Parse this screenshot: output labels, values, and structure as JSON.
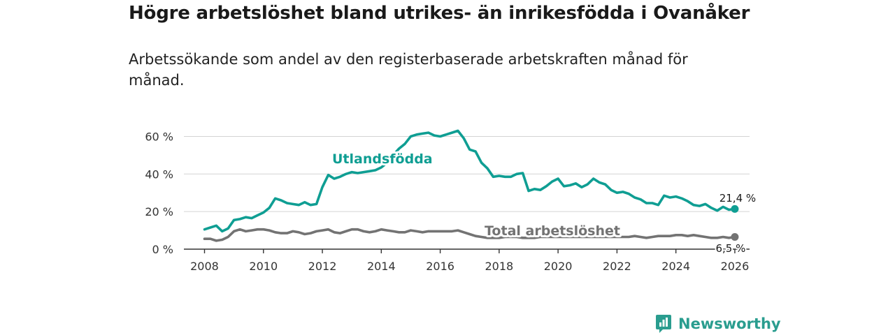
{
  "title": "Högre arbetslöshet bland utrikes- än inrikesfödda i Ovanåker",
  "subtitle": "Arbetssökande som andel av den registerbaserade arbetskraften månad för månad.",
  "brand": "Newsworthy",
  "colors": {
    "foreign": "#0f9e93",
    "total": "#737373",
    "grid": "#d4d4d4",
    "brand": "#2a9d8f"
  },
  "chart_data": {
    "type": "line",
    "title": "Högre arbetslöshet bland utrikes- än inrikesfödda i Ovanåker",
    "xlabel": "",
    "ylabel": "",
    "xlim": [
      2007.3,
      2026.5
    ],
    "ylim": [
      0,
      65
    ],
    "yticks": [
      0,
      20,
      40,
      60
    ],
    "ytick_labels": [
      "0 %",
      "20 %",
      "40 %",
      "60 %"
    ],
    "xticks": [
      2008,
      2010,
      2012,
      2014,
      2016,
      2018,
      2020,
      2022,
      2024,
      2026
    ],
    "xtick_labels": [
      "2008",
      "2010",
      "2012",
      "2014",
      "2016",
      "2018",
      "2020",
      "2022",
      "2024",
      "2026"
    ],
    "grid": true,
    "series": [
      {
        "name": "Utlandsfödda",
        "label": "Utlandsfödda",
        "end_label": "21,4 %",
        "x": [
          2008.0,
          2008.2,
          2008.4,
          2008.6,
          2008.8,
          2009.0,
          2009.2,
          2009.4,
          2009.6,
          2009.8,
          2010.0,
          2010.2,
          2010.4,
          2010.6,
          2010.8,
          2011.0,
          2011.2,
          2011.4,
          2011.6,
          2011.8,
          2012.0,
          2012.2,
          2012.4,
          2012.6,
          2012.8,
          2013.0,
          2013.2,
          2013.4,
          2013.6,
          2013.8,
          2014.0,
          2014.2,
          2014.4,
          2014.6,
          2014.8,
          2015.0,
          2015.2,
          2015.4,
          2015.6,
          2015.8,
          2016.0,
          2016.2,
          2016.4,
          2016.6,
          2016.8,
          2017.0,
          2017.2,
          2017.4,
          2017.6,
          2017.8,
          2018.0,
          2018.2,
          2018.4,
          2018.6,
          2018.8,
          2019.0,
          2019.2,
          2019.4,
          2019.6,
          2019.8,
          2020.0,
          2020.2,
          2020.4,
          2020.6,
          2020.8,
          2021.0,
          2021.2,
          2021.4,
          2021.6,
          2021.8,
          2022.0,
          2022.2,
          2022.4,
          2022.6,
          2022.8,
          2023.0,
          2023.2,
          2023.4,
          2023.6,
          2023.8,
          2024.0,
          2024.2,
          2024.4,
          2024.6,
          2024.8,
          2025.0,
          2025.2,
          2025.4,
          2025.6,
          2025.8,
          2026.0
        ],
        "values": [
          10.5,
          11.5,
          12.5,
          9.5,
          11.0,
          15.5,
          16.0,
          17.0,
          16.5,
          18.0,
          19.5,
          22.0,
          27.0,
          26.0,
          24.5,
          24.0,
          23.5,
          25.0,
          23.5,
          24.0,
          33.0,
          39.5,
          37.5,
          38.5,
          40.0,
          41.0,
          40.5,
          41.0,
          41.5,
          42.0,
          43.5,
          46.0,
          50.0,
          53.5,
          56.0,
          60.0,
          61.0,
          61.5,
          62.0,
          60.5,
          60.0,
          61.0,
          62.0,
          63.0,
          59.0,
          53.0,
          52.0,
          46.0,
          43.0,
          38.5,
          39.0,
          38.5,
          38.5,
          40.0,
          40.5,
          31.0,
          32.0,
          31.5,
          33.5,
          36.0,
          37.5,
          33.5,
          34.0,
          35.0,
          33.0,
          34.5,
          37.5,
          35.5,
          34.5,
          31.5,
          30.0,
          30.5,
          29.5,
          27.5,
          26.5,
          24.5,
          24.5,
          23.5,
          28.5,
          27.5,
          28.0,
          27.0,
          25.5,
          23.5,
          23.0,
          24.0,
          22.0,
          20.5,
          22.5,
          21.0,
          21.4
        ]
      },
      {
        "name": "Total arbetslöshet",
        "label": "Total arbetslöshet",
        "end_label": "6,5 %",
        "x": [
          2008.0,
          2008.2,
          2008.4,
          2008.6,
          2008.8,
          2009.0,
          2009.2,
          2009.4,
          2009.6,
          2009.8,
          2010.0,
          2010.2,
          2010.4,
          2010.6,
          2010.8,
          2011.0,
          2011.2,
          2011.4,
          2011.6,
          2011.8,
          2012.0,
          2012.2,
          2012.4,
          2012.6,
          2012.8,
          2013.0,
          2013.2,
          2013.4,
          2013.6,
          2013.8,
          2014.0,
          2014.2,
          2014.4,
          2014.6,
          2014.8,
          2015.0,
          2015.2,
          2015.4,
          2015.6,
          2015.8,
          2016.0,
          2016.2,
          2016.4,
          2016.6,
          2016.8,
          2017.0,
          2017.2,
          2017.4,
          2017.6,
          2017.8,
          2018.0,
          2018.2,
          2018.4,
          2018.6,
          2018.8,
          2019.0,
          2019.2,
          2019.4,
          2019.6,
          2019.8,
          2020.0,
          2020.2,
          2020.4,
          2020.6,
          2020.8,
          2021.0,
          2021.2,
          2021.4,
          2021.6,
          2021.8,
          2022.0,
          2022.2,
          2022.4,
          2022.6,
          2022.8,
          2023.0,
          2023.2,
          2023.4,
          2023.6,
          2023.8,
          2024.0,
          2024.2,
          2024.4,
          2024.6,
          2024.8,
          2025.0,
          2025.2,
          2025.4,
          2025.6,
          2025.8,
          2026.0
        ],
        "values": [
          5.5,
          5.5,
          4.5,
          5.0,
          6.5,
          9.5,
          10.5,
          9.5,
          10.0,
          10.5,
          10.5,
          10.0,
          9.0,
          8.5,
          8.5,
          9.5,
          9.0,
          8.0,
          8.5,
          9.5,
          10.0,
          10.5,
          9.0,
          8.5,
          9.5,
          10.5,
          10.5,
          9.5,
          9.0,
          9.5,
          10.5,
          10.0,
          9.5,
          9.0,
          9.0,
          10.0,
          9.5,
          9.0,
          9.5,
          9.5,
          9.5,
          9.5,
          9.5,
          10.0,
          9.0,
          8.0,
          7.0,
          6.5,
          6.0,
          6.0,
          6.0,
          6.5,
          6.5,
          6.5,
          6.0,
          6.0,
          6.0,
          6.5,
          6.5,
          6.5,
          6.5,
          6.5,
          6.5,
          6.5,
          6.5,
          6.5,
          6.5,
          6.5,
          6.5,
          6.5,
          6.5,
          6.5,
          6.5,
          7.0,
          6.5,
          6.0,
          6.5,
          7.0,
          7.0,
          7.0,
          7.5,
          7.5,
          7.0,
          7.5,
          7.0,
          6.5,
          6.0,
          6.0,
          6.5,
          6.0,
          6.5
        ]
      }
    ]
  }
}
